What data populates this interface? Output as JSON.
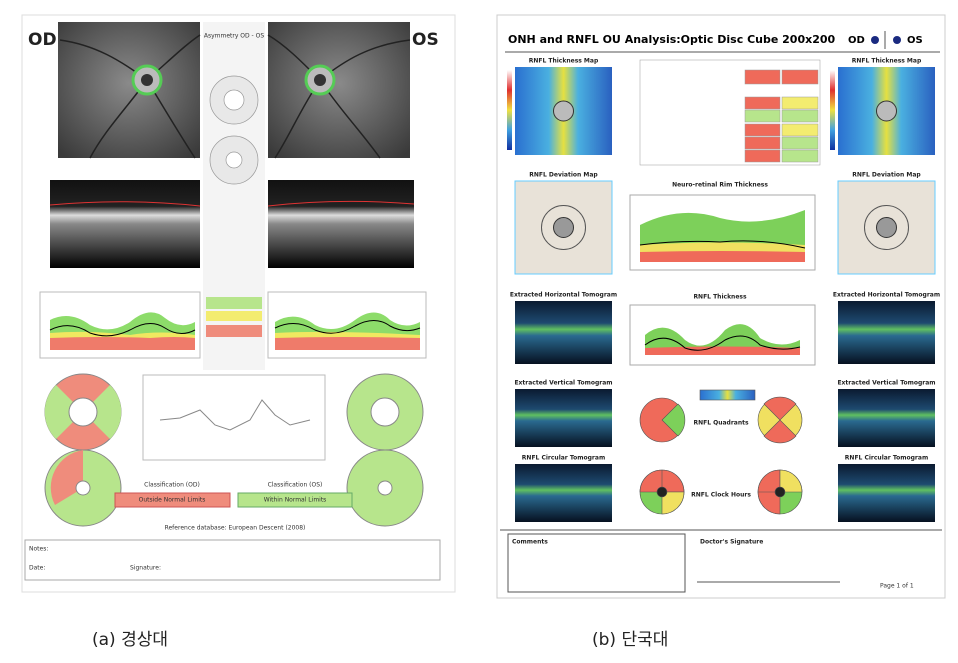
{
  "left_report": {
    "od": "OD",
    "os": "OS",
    "asymmetry": "Asymmetry OD - OS",
    "classification_od": "Classification (OD)",
    "classification_os": "Classification (OS)",
    "od_result": "Outside Normal Limits",
    "os_result": "Within Normal Limits",
    "reference": "Reference database: European Descent (2008)",
    "notes": "Notes:",
    "date": "Date:",
    "signature": "Signature:"
  },
  "right_report": {
    "title": "ONH and RNFL OU Analysis:Optic Disc Cube 200x200",
    "od": "OD",
    "os": "OS",
    "side_panels": [
      "RNFL Thickness Map",
      "RNFL Deviation Map",
      "Extracted Horizontal Tomogram",
      "Extracted Vertical Tomogram",
      "RNFL Circular Tomogram"
    ],
    "center_panels": [
      "Neuro-retinal Rim Thickness",
      "RNFL Thickness",
      "RNFL Quadrants",
      "RNFL Clock Hours"
    ],
    "comments": "Comments",
    "doctor_signature": "Doctor's Signature",
    "page": "Page 1 of 1"
  },
  "captions": [
    "(a) 경상대",
    "(b) 단국대"
  ]
}
